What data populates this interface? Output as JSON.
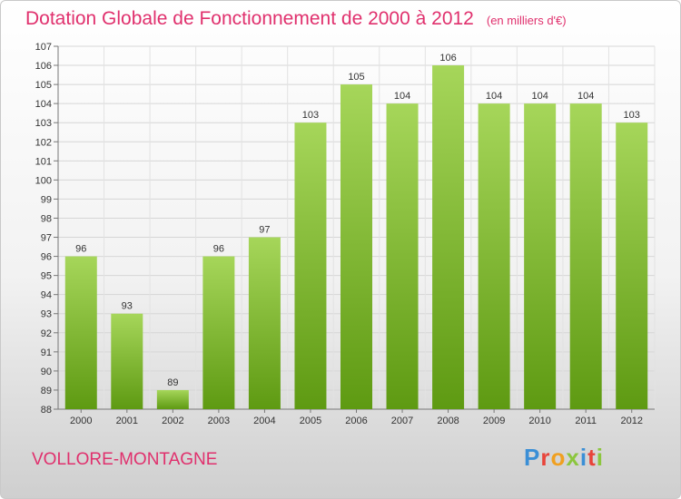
{
  "header": {
    "title": "Dotation Globale de Fonctionnement de 2000 à 2012",
    "unit": "(en milliers d'€)"
  },
  "footer": {
    "commune": "VOLLORE-MONTAGNE",
    "brand_letters": [
      "P",
      "r",
      "o",
      "x",
      "i",
      "t",
      "i"
    ],
    "brand_colors": [
      "#3b8fd6",
      "#e8443a",
      "#f0a020",
      "#8cc63e",
      "#3b8fd6",
      "#e8443a",
      "#8cc63e"
    ]
  },
  "colors": {
    "bar_top": "#a6d65a",
    "bar_bottom": "#5e9a12",
    "accent": "#e0306d"
  },
  "chart_data": {
    "type": "bar",
    "title": "Dotation Globale de Fonctionnement de 2000 à 2012",
    "subtitle": "(en milliers d'€)",
    "categories": [
      "2000",
      "2001",
      "2002",
      "2003",
      "2004",
      "2005",
      "2006",
      "2007",
      "2008",
      "2009",
      "2010",
      "2011",
      "2012"
    ],
    "values": [
      96,
      93,
      89,
      96,
      97,
      103,
      105,
      104,
      106,
      104,
      104,
      104,
      103
    ],
    "ylim": [
      88,
      107
    ],
    "yticks": [
      88,
      89,
      90,
      91,
      92,
      93,
      94,
      95,
      96,
      97,
      98,
      99,
      100,
      101,
      102,
      103,
      104,
      105,
      106,
      107
    ],
    "grid": true
  }
}
